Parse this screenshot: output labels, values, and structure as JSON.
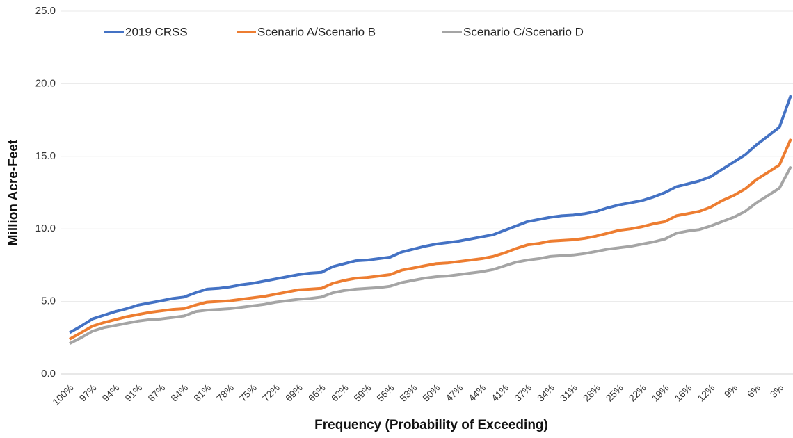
{
  "chart_data": {
    "type": "line",
    "x_label": "Frequency (Probability of Exceeding)",
    "y_label": "Million Acre-Feet",
    "categories": [
      "100%",
      null,
      "97%",
      null,
      "94%",
      null,
      "91%",
      null,
      "87%",
      null,
      "84%",
      null,
      "81%",
      null,
      "78%",
      null,
      "75%",
      null,
      "72%",
      null,
      "69%",
      null,
      "66%",
      null,
      "62%",
      null,
      "59%",
      null,
      "56%",
      null,
      "53%",
      null,
      "50%",
      null,
      "47%",
      null,
      "44%",
      null,
      "41%",
      null,
      "37%",
      null,
      "34%",
      null,
      "31%",
      null,
      "28%",
      null,
      "25%",
      null,
      "22%",
      null,
      "19%",
      null,
      "16%",
      null,
      "12%",
      null,
      "9%",
      null,
      "6%",
      null,
      "3%",
      null
    ],
    "series": [
      {
        "name": "2019 CRSS",
        "color": "#4472c4",
        "values": [
          2.85,
          3.3,
          3.8,
          4.05,
          4.3,
          4.5,
          4.75,
          4.9,
          5.05,
          5.2,
          5.3,
          5.6,
          5.85,
          5.9,
          6.0,
          6.15,
          6.25,
          6.4,
          6.55,
          6.7,
          6.85,
          6.95,
          7.0,
          7.4,
          7.6,
          7.8,
          7.85,
          7.95,
          8.05,
          8.4,
          8.6,
          8.8,
          8.95,
          9.05,
          9.15,
          9.3,
          9.45,
          9.6,
          9.9,
          10.2,
          10.5,
          10.65,
          10.8,
          10.9,
          10.95,
          11.05,
          11.2,
          11.45,
          11.65,
          11.8,
          11.95,
          12.2,
          12.5,
          12.9,
          13.1,
          13.3,
          13.6,
          14.1,
          14.6,
          15.1,
          15.8,
          16.4,
          17.0,
          19.2
        ]
      },
      {
        "name": "Scenario A/Scenario B",
        "color": "#ed7d31",
        "values": [
          2.4,
          2.85,
          3.3,
          3.55,
          3.75,
          3.95,
          4.1,
          4.25,
          4.35,
          4.45,
          4.5,
          4.75,
          4.95,
          5.0,
          5.05,
          5.15,
          5.25,
          5.35,
          5.5,
          5.65,
          5.8,
          5.85,
          5.9,
          6.25,
          6.45,
          6.6,
          6.65,
          6.75,
          6.85,
          7.15,
          7.3,
          7.45,
          7.6,
          7.65,
          7.75,
          7.85,
          7.95,
          8.1,
          8.35,
          8.65,
          8.9,
          9.0,
          9.15,
          9.2,
          9.25,
          9.35,
          9.5,
          9.7,
          9.9,
          10.0,
          10.15,
          10.35,
          10.5,
          10.9,
          11.05,
          11.2,
          11.5,
          11.95,
          12.3,
          12.75,
          13.4,
          13.9,
          14.4,
          16.2
        ]
      },
      {
        "name": "Scenario C/Scenario D",
        "color": "#a5a5a5",
        "values": [
          2.1,
          2.5,
          2.95,
          3.2,
          3.35,
          3.5,
          3.65,
          3.75,
          3.8,
          3.9,
          4.0,
          4.3,
          4.4,
          4.45,
          4.5,
          4.6,
          4.7,
          4.8,
          4.95,
          5.05,
          5.15,
          5.2,
          5.3,
          5.6,
          5.75,
          5.85,
          5.9,
          5.95,
          6.05,
          6.3,
          6.45,
          6.6,
          6.7,
          6.75,
          6.85,
          6.95,
          7.05,
          7.2,
          7.45,
          7.7,
          7.85,
          7.95,
          8.1,
          8.15,
          8.2,
          8.3,
          8.45,
          8.6,
          8.7,
          8.8,
          8.95,
          9.1,
          9.3,
          9.7,
          9.85,
          9.95,
          10.2,
          10.5,
          10.8,
          11.2,
          11.8,
          12.3,
          12.8,
          14.3
        ]
      }
    ],
    "ylim": [
      0,
      25
    ],
    "yticks": [
      {
        "value": 0,
        "label": "0.0"
      },
      {
        "value": 5,
        "label": "5.0"
      },
      {
        "value": 10,
        "label": "10.0"
      },
      {
        "value": 15,
        "label": "15.0"
      },
      {
        "value": 20,
        "label": "20.0"
      },
      {
        "value": 25,
        "label": "25.0"
      }
    ],
    "grid": true,
    "legend": "top"
  }
}
